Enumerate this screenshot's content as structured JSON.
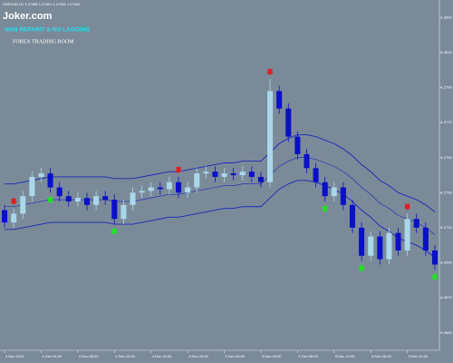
{
  "chart_data": {
    "type": "candlestick",
    "symbol_info": "GBPUSD,H1 1.27485 1.27521 1.27350 1.27440",
    "title": "Joker.com",
    "subtitle": "NON REPAINT & NO LAGGING",
    "annotation": "FOREX TRADING ROOM",
    "up_color": "#a9d8ea",
    "down_color": "#0a10c8",
    "band_color": "#1a28b8",
    "categories": [
      "4 Dec 2018",
      null,
      null,
      null,
      "4 Dec 04:00",
      null,
      null,
      null,
      "4 Dec 08:00",
      null,
      null,
      null,
      "4 Dec 12:00",
      null,
      null,
      null,
      "4 Dec 16:00",
      null,
      null,
      null,
      "4 Dec 20:00",
      null,
      null,
      null,
      "5 Dec 00:00",
      null,
      null,
      null,
      "5 Dec 04:00",
      null,
      null,
      null,
      "5 Dec 08:00",
      null,
      null,
      null,
      "5 Dec 12:00",
      null,
      null,
      null,
      "5 Dec 16:00",
      null,
      null,
      null,
      "5 Dec 20:00",
      null,
      null,
      null
    ],
    "open": [
      1.272,
      1.2713,
      1.2718,
      1.2728,
      1.2739,
      1.2741,
      1.2733,
      1.2728,
      1.2725,
      1.2727,
      1.2723,
      1.2728,
      1.2726,
      1.2715,
      1.2723,
      1.273,
      1.2731,
      1.2733,
      1.2732,
      1.2736,
      1.273,
      1.2733,
      1.2741,
      1.2742,
      1.2739,
      1.2741,
      1.274,
      1.2742,
      1.2739,
      1.2736,
      1.2788,
      1.2778,
      1.2762,
      1.2752,
      1.2744,
      1.2736,
      1.2728,
      1.2733,
      1.2723,
      1.271,
      1.2694,
      1.2705,
      1.2692,
      1.2707,
      1.2697,
      1.2715,
      1.271,
      1.2697
    ],
    "high": [
      1.2723,
      1.2721,
      1.2731,
      1.2742,
      1.2744,
      1.2744,
      1.2736,
      1.2731,
      1.273,
      1.273,
      1.2731,
      1.2731,
      1.2729,
      1.2726,
      1.2733,
      1.2734,
      1.2736,
      1.2736,
      1.2739,
      1.2739,
      1.2736,
      1.2744,
      1.2745,
      1.2745,
      1.2744,
      1.2744,
      1.2745,
      1.2745,
      1.2742,
      1.2795,
      1.2791,
      1.2781,
      1.2765,
      1.2755,
      1.2747,
      1.2739,
      1.2736,
      1.2736,
      1.2726,
      1.2713,
      1.2708,
      1.2708,
      1.271,
      1.271,
      1.2718,
      1.2718,
      1.2713,
      1.27
    ],
    "low": [
      1.271,
      1.271,
      1.2715,
      1.2725,
      1.2736,
      1.273,
      1.2725,
      1.2722,
      1.2722,
      1.272,
      1.272,
      1.2723,
      1.2712,
      1.2712,
      1.272,
      1.2727,
      1.2728,
      1.2729,
      1.2729,
      1.2727,
      1.2727,
      1.273,
      1.2738,
      1.2736,
      1.2736,
      1.2737,
      1.2737,
      1.2736,
      1.2733,
      1.2733,
      1.2775,
      1.2759,
      1.2749,
      1.2741,
      1.2733,
      1.2725,
      1.2725,
      1.272,
      1.2707,
      1.2691,
      1.2691,
      1.2689,
      1.2689,
      1.2694,
      1.2694,
      1.2707,
      1.2694,
      1.2686
    ],
    "close": [
      1.2713,
      1.2718,
      1.2728,
      1.2739,
      1.2741,
      1.2733,
      1.2728,
      1.2725,
      1.2727,
      1.2723,
      1.2728,
      1.2726,
      1.2715,
      1.2723,
      1.273,
      1.2731,
      1.2733,
      1.2732,
      1.2736,
      1.273,
      1.2733,
      1.2741,
      1.2742,
      1.2739,
      1.2741,
      1.274,
      1.2742,
      1.2739,
      1.2736,
      1.2788,
      1.2778,
      1.2762,
      1.2752,
      1.2744,
      1.2736,
      1.2728,
      1.2733,
      1.2723,
      1.271,
      1.2694,
      1.2705,
      1.2692,
      1.2707,
      1.2697,
      1.2715,
      1.271,
      1.2697,
      1.2689
    ],
    "bands": {
      "upper": [
        1.2735,
        1.2735,
        1.2736,
        1.2737,
        1.2738,
        1.2739,
        1.2739,
        1.2739,
        1.2739,
        1.2739,
        1.2739,
        1.2739,
        1.2738,
        1.2738,
        1.2738,
        1.2739,
        1.274,
        1.2741,
        1.2742,
        1.2742,
        1.2743,
        1.2744,
        1.2745,
        1.2746,
        1.2747,
        1.2747,
        1.2748,
        1.2748,
        1.2748,
        1.2753,
        1.2758,
        1.2761,
        1.2763,
        1.2763,
        1.2762,
        1.276,
        1.2758,
        1.2755,
        1.2751,
        1.2746,
        1.2742,
        1.2737,
        1.2734,
        1.273,
        1.2728,
        1.2726,
        1.2723,
        1.2719
      ],
      "middle": [
        1.2722,
        1.2722,
        1.2723,
        1.2724,
        1.2725,
        1.2726,
        1.2726,
        1.2726,
        1.2726,
        1.2726,
        1.2726,
        1.2726,
        1.2725,
        1.2725,
        1.2725,
        1.2726,
        1.2727,
        1.2728,
        1.2729,
        1.2729,
        1.273,
        1.2731,
        1.2732,
        1.2733,
        1.2734,
        1.2734,
        1.2735,
        1.2735,
        1.2735,
        1.274,
        1.2745,
        1.2748,
        1.275,
        1.275,
        1.2749,
        1.2747,
        1.2745,
        1.2742,
        1.2738,
        1.2733,
        1.2729,
        1.2724,
        1.2721,
        1.2717,
        1.2715,
        1.2713,
        1.271,
        1.2706
      ],
      "lower": [
        1.2709,
        1.2709,
        1.271,
        1.2711,
        1.2712,
        1.2713,
        1.2713,
        1.2713,
        1.2713,
        1.2713,
        1.2713,
        1.2713,
        1.2712,
        1.2712,
        1.2712,
        1.2713,
        1.2714,
        1.2715,
        1.2716,
        1.2716,
        1.2717,
        1.2718,
        1.2719,
        1.272,
        1.2721,
        1.2721,
        1.2722,
        1.2722,
        1.2722,
        1.2727,
        1.2732,
        1.2735,
        1.2737,
        1.2737,
        1.2736,
        1.2734,
        1.2732,
        1.2729,
        1.2725,
        1.272,
        1.2716,
        1.2711,
        1.2708,
        1.2704,
        1.2702,
        1.27,
        1.2697,
        1.2693
      ]
    },
    "sell_signals": [
      1,
      19,
      29,
      44
    ],
    "buy_signals": [
      5,
      12,
      35,
      39,
      47
    ],
    "ylim": [
      1.264,
      1.284
    ],
    "yticks": [
      {
        "value": 1.265,
        "label": "1.2650"
      },
      {
        "value": 1.267,
        "label": "1.2670"
      },
      {
        "value": 1.269,
        "label": "1.2690"
      },
      {
        "value": 1.271,
        "label": "1.2710"
      },
      {
        "value": 1.273,
        "label": "1.2730"
      },
      {
        "value": 1.275,
        "label": "1.2750"
      },
      {
        "value": 1.277,
        "label": "1.2770"
      },
      {
        "value": 1.279,
        "label": "1.2790"
      },
      {
        "value": 1.281,
        "label": "1.2810"
      },
      {
        "value": 1.283,
        "label": "1.2830"
      }
    ]
  }
}
